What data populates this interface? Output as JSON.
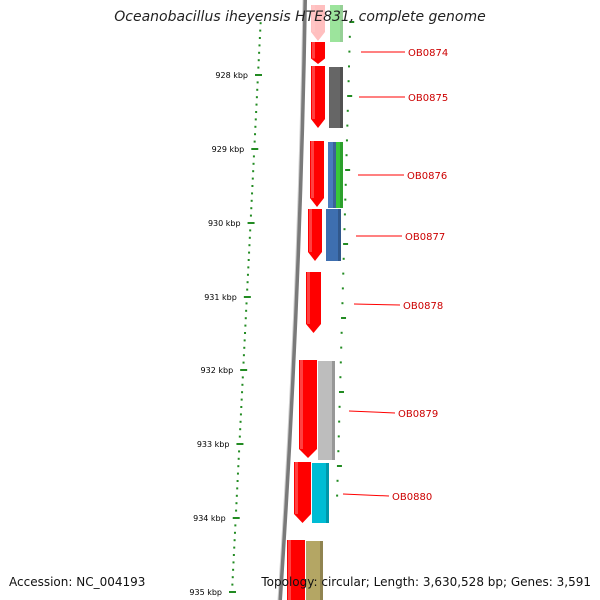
{
  "title": "Oceanobacillus iheyensis HTE831, complete genome",
  "footer": {
    "accession": "Accession: NC_004193",
    "summary": "Topology: circular; Length: 3,630,528 bp; Genes: 3,591"
  },
  "colors": {
    "forward_gene": "#ff0000",
    "gene_label": "#cc0000",
    "leader_line": "#ff0000",
    "tick": "#228b22",
    "backbone": "#7a7a7a"
  },
  "scale": {
    "unit": "kbp",
    "major_ticks": [
      "928 kbp",
      "929 kbp",
      "930 kbp",
      "931 kbp",
      "932 kbp",
      "933 kbp",
      "934 kbp",
      "935 kbp"
    ]
  },
  "genes": [
    {
      "label": "OB0874"
    },
    {
      "label": "OB0875"
    },
    {
      "label": "OB0876"
    },
    {
      "label": "OB0877"
    },
    {
      "label": "OB0878"
    },
    {
      "label": "OB0879"
    },
    {
      "label": "OB0880"
    }
  ]
}
